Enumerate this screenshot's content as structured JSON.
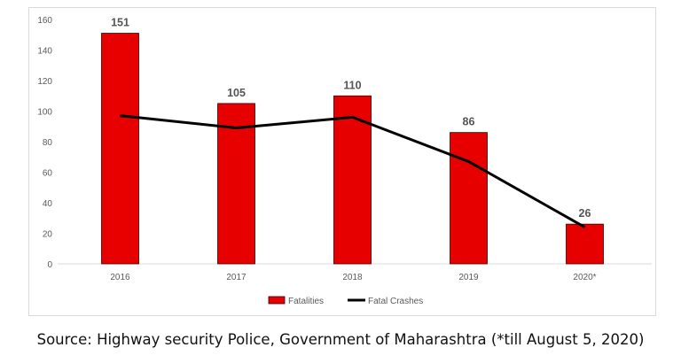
{
  "chart_data": {
    "type": "bar+line",
    "categories": [
      "2016",
      "2017",
      "2018",
      "2019",
      "2020*"
    ],
    "series": [
      {
        "name": "Fatalities",
        "type": "bar",
        "values": [
          151,
          105,
          110,
          86,
          26
        ],
        "color": "#e60000"
      },
      {
        "name": "Fatal Crashes",
        "type": "line",
        "values": [
          97,
          89,
          96,
          67,
          24
        ],
        "color": "#000000"
      }
    ],
    "data_labels": [
      "151",
      "105",
      "110",
      "86",
      "26"
    ],
    "y_ticks": [
      "0",
      "20",
      "40",
      "60",
      "80",
      "100",
      "120",
      "140",
      "160"
    ],
    "ylim": [
      0,
      160
    ],
    "grid": false,
    "legend": "bottom"
  },
  "source": "Source: Highway security Police, Government of Maharashtra (*till August 5, 2020)"
}
